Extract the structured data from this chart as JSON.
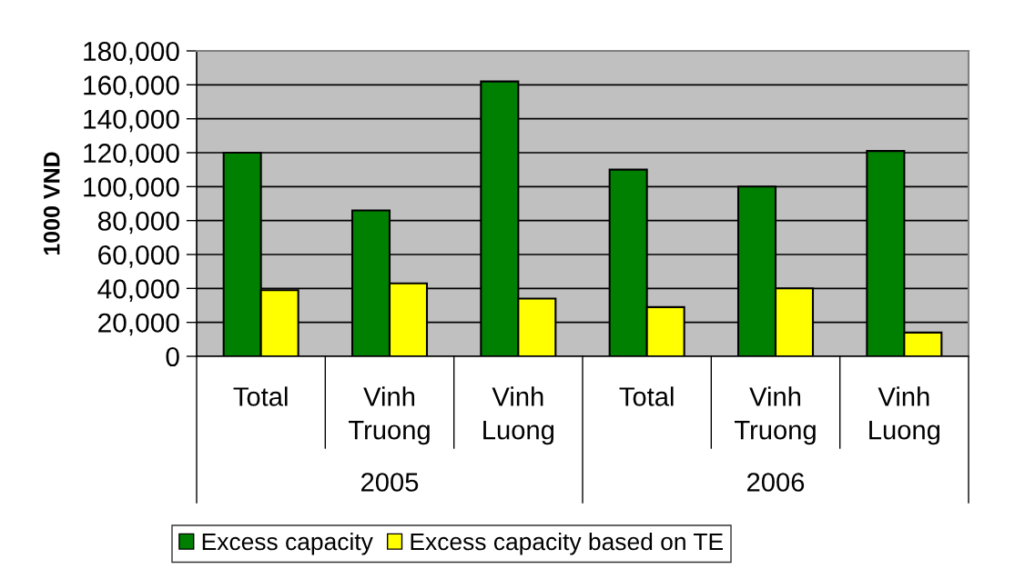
{
  "chart_data": {
    "type": "bar",
    "ylabel": "1000 VND",
    "categories": [
      "Total",
      "Vinh Truong",
      "Vinh Luong",
      "Total",
      "Vinh Truong",
      "Vinh Luong"
    ],
    "annotations": [
      "2005",
      "2006"
    ],
    "series": [
      {
        "name": "Excess capacity",
        "color": "#008000",
        "values": [
          120000,
          86000,
          162000,
          110000,
          100000,
          121000
        ]
      },
      {
        "name": "Excess capacity based on TE",
        "color": "#ffff00",
        "values": [
          39000,
          43000,
          34000,
          29000,
          40000,
          14000
        ]
      }
    ],
    "ylim": [
      0,
      180000
    ],
    "yticks": [
      0,
      {
        "value": 20000,
        "label": "20,000"
      },
      {
        "value": 40000,
        "label": "40,000"
      },
      {
        "value": 60000,
        "label": "60,000"
      },
      {
        "value": 80000,
        "label": "80,000"
      },
      {
        "value": 100000,
        "label": "100,000"
      },
      {
        "value": 120000,
        "label": "120,000"
      },
      {
        "value": 140000,
        "label": "140,000"
      },
      {
        "value": 160000,
        "label": "160,000"
      },
      {
        "value": 180000,
        "label": "180,000"
      }
    ],
    "grid": "y",
    "legend": "bottom"
  }
}
